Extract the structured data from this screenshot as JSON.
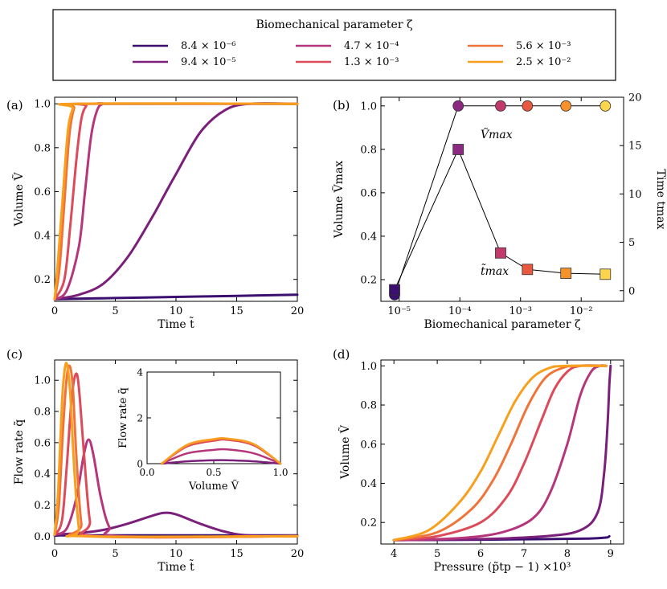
{
  "legend": {
    "title": "Biomechanical parameter ζ",
    "entries": [
      {
        "label": "8.4 × 10⁻⁶",
        "color": "#3b0f70"
      },
      {
        "label": "9.4 × 10⁻⁵",
        "color": "#7a1f7a"
      },
      {
        "label": "4.7 × 10⁻⁴",
        "color": "#b5367a"
      },
      {
        "label": "1.3 × 10⁻³",
        "color": "#dd4a5a"
      },
      {
        "label": "5.6 × 10⁻³",
        "color": "#f0743a"
      },
      {
        "label": "2.5 × 10⁻²",
        "color": "#f8a01e"
      }
    ]
  },
  "chart_data": [
    {
      "panel": "(a)",
      "type": "line",
      "xlabel": "Time t̃",
      "ylabel": "Volume Ṽ",
      "xlim": [
        0,
        20
      ],
      "ylim": [
        0.1,
        1.03
      ],
      "xticks": [
        "0",
        "5",
        "10",
        "15",
        "20"
      ],
      "yticks": [
        "0.2",
        "0.4",
        "0.6",
        "0.8",
        "1.0"
      ],
      "series": [
        {
          "name": "8.4e-6",
          "x": [
            0,
            5,
            10,
            15,
            20
          ],
          "y": [
            0.11,
            0.115,
            0.12,
            0.125,
            0.13
          ]
        },
        {
          "name": "9.4e-5",
          "x": [
            0,
            2,
            4,
            6,
            8,
            9,
            10,
            12,
            14,
            16,
            20
          ],
          "y": [
            0.11,
            0.13,
            0.18,
            0.3,
            0.48,
            0.58,
            0.68,
            0.87,
            0.97,
            1.0,
            1.0
          ]
        },
        {
          "name": "4.7e-4",
          "x": [
            0,
            1,
            2,
            2.5,
            3,
            3.5,
            4,
            5,
            20
          ],
          "y": [
            0.11,
            0.15,
            0.35,
            0.6,
            0.85,
            0.97,
            1.0,
            1.0,
            1.0
          ]
        },
        {
          "name": "1.3e-3",
          "x": [
            0,
            0.8,
            1.3,
            1.8,
            2.2,
            2.6,
            3,
            20
          ],
          "y": [
            0.11,
            0.2,
            0.45,
            0.75,
            0.93,
            0.99,
            1.0,
            1.0
          ]
        },
        {
          "name": "5.6e-3",
          "x": [
            0,
            0.4,
            0.8,
            1.2,
            1.6,
            2,
            20
          ],
          "y": [
            0.11,
            0.25,
            0.55,
            0.85,
            0.98,
            1.0,
            1.0
          ]
        },
        {
          "name": "2.5e-2",
          "x": [
            0,
            0.3,
            0.7,
            1.1,
            1.5,
            1.8,
            20
          ],
          "y": [
            0.11,
            0.3,
            0.6,
            0.88,
            0.98,
            1.0,
            1.0
          ]
        }
      ]
    },
    {
      "panel": "(b)",
      "type": "scatter",
      "xlabel": "Biomechanical parameter ζ",
      "ylabel": "Volume Ṽmax",
      "ylabel_right": "Time t̃max",
      "xscale": "log",
      "xlim": [
        5e-06,
        0.05
      ],
      "ylim": [
        0.1,
        1.04
      ],
      "ylim_right": [
        -1.1,
        20
      ],
      "xticks": [
        "10⁻⁵",
        "10⁻⁴",
        "10⁻³",
        "10⁻²"
      ],
      "yticks": [
        "0.2",
        "0.4",
        "0.6",
        "0.8",
        "1.0"
      ],
      "yticks_right": [
        "0",
        "5",
        "10",
        "15",
        "20"
      ],
      "x": [
        8.4e-06,
        9.4e-05,
        0.00047,
        0.0013,
        0.0056,
        0.025
      ],
      "vmax": [
        0.13,
        1.0,
        1.0,
        1.0,
        1.0,
        1.0
      ],
      "tmax": [
        0.1,
        14.6,
        3.9,
        2.2,
        1.8,
        1.7
      ],
      "colors": [
        "#3b0f70",
        "#8c2981",
        "#c13a6b",
        "#e8593f",
        "#f7912b",
        "#fcd54d"
      ],
      "annotations": [
        "Ṽmax",
        "t̃max"
      ]
    },
    {
      "panel": "(c)",
      "type": "line",
      "xlabel": "Time t̃",
      "ylabel": "Flow rate q̃",
      "xlim": [
        0,
        20
      ],
      "ylim": [
        -0.05,
        1.13
      ],
      "xticks": [
        "0",
        "5",
        "10",
        "15",
        "20"
      ],
      "yticks": [
        "0.0",
        "0.2",
        "0.4",
        "0.6",
        "0.8",
        "1.0"
      ],
      "series": [
        {
          "name": "8.4e-6",
          "x": [
            0,
            20
          ],
          "y": [
            0.005,
            0.005
          ]
        },
        {
          "name": "9.4e-5",
          "x": [
            0,
            2,
            4,
            6,
            8,
            9,
            10,
            12,
            14,
            16,
            20
          ],
          "y": [
            0.01,
            0.02,
            0.04,
            0.08,
            0.13,
            0.15,
            0.14,
            0.08,
            0.03,
            0.005,
            0.0
          ]
        },
        {
          "name": "4.7e-4",
          "x": [
            0,
            1,
            1.8,
            2.4,
            2.8,
            3.2,
            3.8,
            4.5,
            5.5,
            20
          ],
          "y": [
            0.01,
            0.05,
            0.25,
            0.52,
            0.62,
            0.52,
            0.25,
            0.06,
            0.0,
            0.0
          ]
        },
        {
          "name": "1.3e-3",
          "x": [
            0,
            0.6,
            1.0,
            1.4,
            1.75,
            2.0,
            2.4,
            2.9,
            3.5,
            20
          ],
          "y": [
            0.01,
            0.1,
            0.45,
            0.88,
            1.04,
            0.95,
            0.55,
            0.1,
            0.0,
            0.0
          ]
        },
        {
          "name": "5.6e-3",
          "x": [
            0,
            0.35,
            0.7,
            1.0,
            1.25,
            1.5,
            1.8,
            2.2,
            2.6,
            20
          ],
          "y": [
            0.01,
            0.2,
            0.7,
            1.02,
            1.09,
            0.95,
            0.5,
            0.08,
            0.0,
            0.0
          ]
        },
        {
          "name": "2.5e-2",
          "x": [
            0,
            0.3,
            0.6,
            0.85,
            1.05,
            1.3,
            1.6,
            2.0,
            2.4,
            20
          ],
          "y": [
            0.01,
            0.3,
            0.85,
            1.08,
            1.09,
            0.9,
            0.45,
            0.05,
            0.0,
            0.0
          ]
        }
      ],
      "inset": {
        "xlabel": "Volume Ṽ",
        "ylabel": "Flow rate q̃",
        "xlim": [
          0,
          1
        ],
        "ylim": [
          0,
          4
        ],
        "xticks": [
          "0.0",
          "0.5",
          "1.0"
        ],
        "yticks": [
          "0",
          "2",
          "4"
        ],
        "series": [
          {
            "name": "8.4e-6",
            "x": [
              0.11,
              0.13
            ],
            "y": [
              0.01,
              0.01
            ]
          },
          {
            "name": "9.4e-5",
            "x": [
              0.11,
              0.3,
              0.5,
              0.6,
              0.8,
              1.0
            ],
            "y": [
              0.0,
              0.1,
              0.15,
              0.15,
              0.1,
              0.0
            ]
          },
          {
            "name": "4.7e-4",
            "x": [
              0.11,
              0.3,
              0.5,
              0.6,
              0.8,
              1.0
            ],
            "y": [
              0.0,
              0.45,
              0.6,
              0.62,
              0.45,
              0.0
            ]
          },
          {
            "name": "1.3e-3",
            "x": [
              0.11,
              0.3,
              0.5,
              0.6,
              0.8,
              1.0
            ],
            "y": [
              0.0,
              0.75,
              1.0,
              1.04,
              0.8,
              0.0
            ]
          },
          {
            "name": "5.6e-3",
            "x": [
              0.11,
              0.3,
              0.5,
              0.6,
              0.8,
              1.0
            ],
            "y": [
              0.0,
              0.8,
              1.05,
              1.09,
              0.85,
              0.0
            ]
          },
          {
            "name": "2.5e-2",
            "x": [
              0.11,
              0.3,
              0.5,
              0.6,
              0.8,
              1.0
            ],
            "y": [
              0.0,
              0.82,
              1.07,
              1.09,
              0.85,
              0.0
            ]
          }
        ]
      }
    },
    {
      "panel": "(d)",
      "type": "line",
      "xlabel": "Pressure (p̃tp − 1) ×10³",
      "ylabel": "Volume Ṽ",
      "xlim": [
        3.7,
        9.3
      ],
      "ylim": [
        0.09,
        1.03
      ],
      "xticks": [
        "4",
        "5",
        "6",
        "7",
        "8",
        "9"
      ],
      "yticks": [
        "0.2",
        "0.4",
        "0.6",
        "0.8",
        "1.0"
      ],
      "series": [
        {
          "name": "8.4e-6",
          "x": [
            4.0,
            6.0,
            7.5,
            8.5,
            8.9,
            8.97
          ],
          "y": [
            0.11,
            0.112,
            0.115,
            0.118,
            0.123,
            0.13
          ]
        },
        {
          "name": "9.4e-5",
          "x": [
            4.0,
            6.0,
            7.5,
            8.3,
            8.7,
            8.85,
            8.93,
            8.97,
            9.0
          ],
          "y": [
            0.11,
            0.115,
            0.13,
            0.16,
            0.25,
            0.45,
            0.7,
            0.9,
            1.0
          ]
        },
        {
          "name": "4.7e-4",
          "x": [
            4.0,
            5.5,
            6.5,
            7.2,
            7.6,
            8.0,
            8.3,
            8.55,
            8.75,
            8.9
          ],
          "y": [
            0.11,
            0.12,
            0.15,
            0.22,
            0.35,
            0.6,
            0.85,
            0.97,
            1.0,
            1.0
          ]
        },
        {
          "name": "1.3e-3",
          "x": [
            4.0,
            5.0,
            6.0,
            6.6,
            7.0,
            7.4,
            7.7,
            8.0,
            8.3,
            8.9
          ],
          "y": [
            0.11,
            0.13,
            0.2,
            0.33,
            0.5,
            0.72,
            0.88,
            0.97,
            1.0,
            1.0
          ]
        },
        {
          "name": "5.6e-3",
          "x": [
            4.0,
            5.0,
            5.8,
            6.3,
            6.7,
            7.1,
            7.5,
            7.9,
            8.2,
            8.9
          ],
          "y": [
            0.11,
            0.15,
            0.27,
            0.42,
            0.6,
            0.8,
            0.94,
            0.99,
            1.0,
            1.0
          ]
        },
        {
          "name": "2.5e-2",
          "x": [
            4.0,
            4.8,
            5.5,
            6.0,
            6.4,
            6.8,
            7.2,
            7.6,
            8.0,
            8.9
          ],
          "y": [
            0.11,
            0.16,
            0.3,
            0.46,
            0.64,
            0.82,
            0.94,
            0.99,
            1.0,
            1.0
          ]
        }
      ]
    }
  ]
}
